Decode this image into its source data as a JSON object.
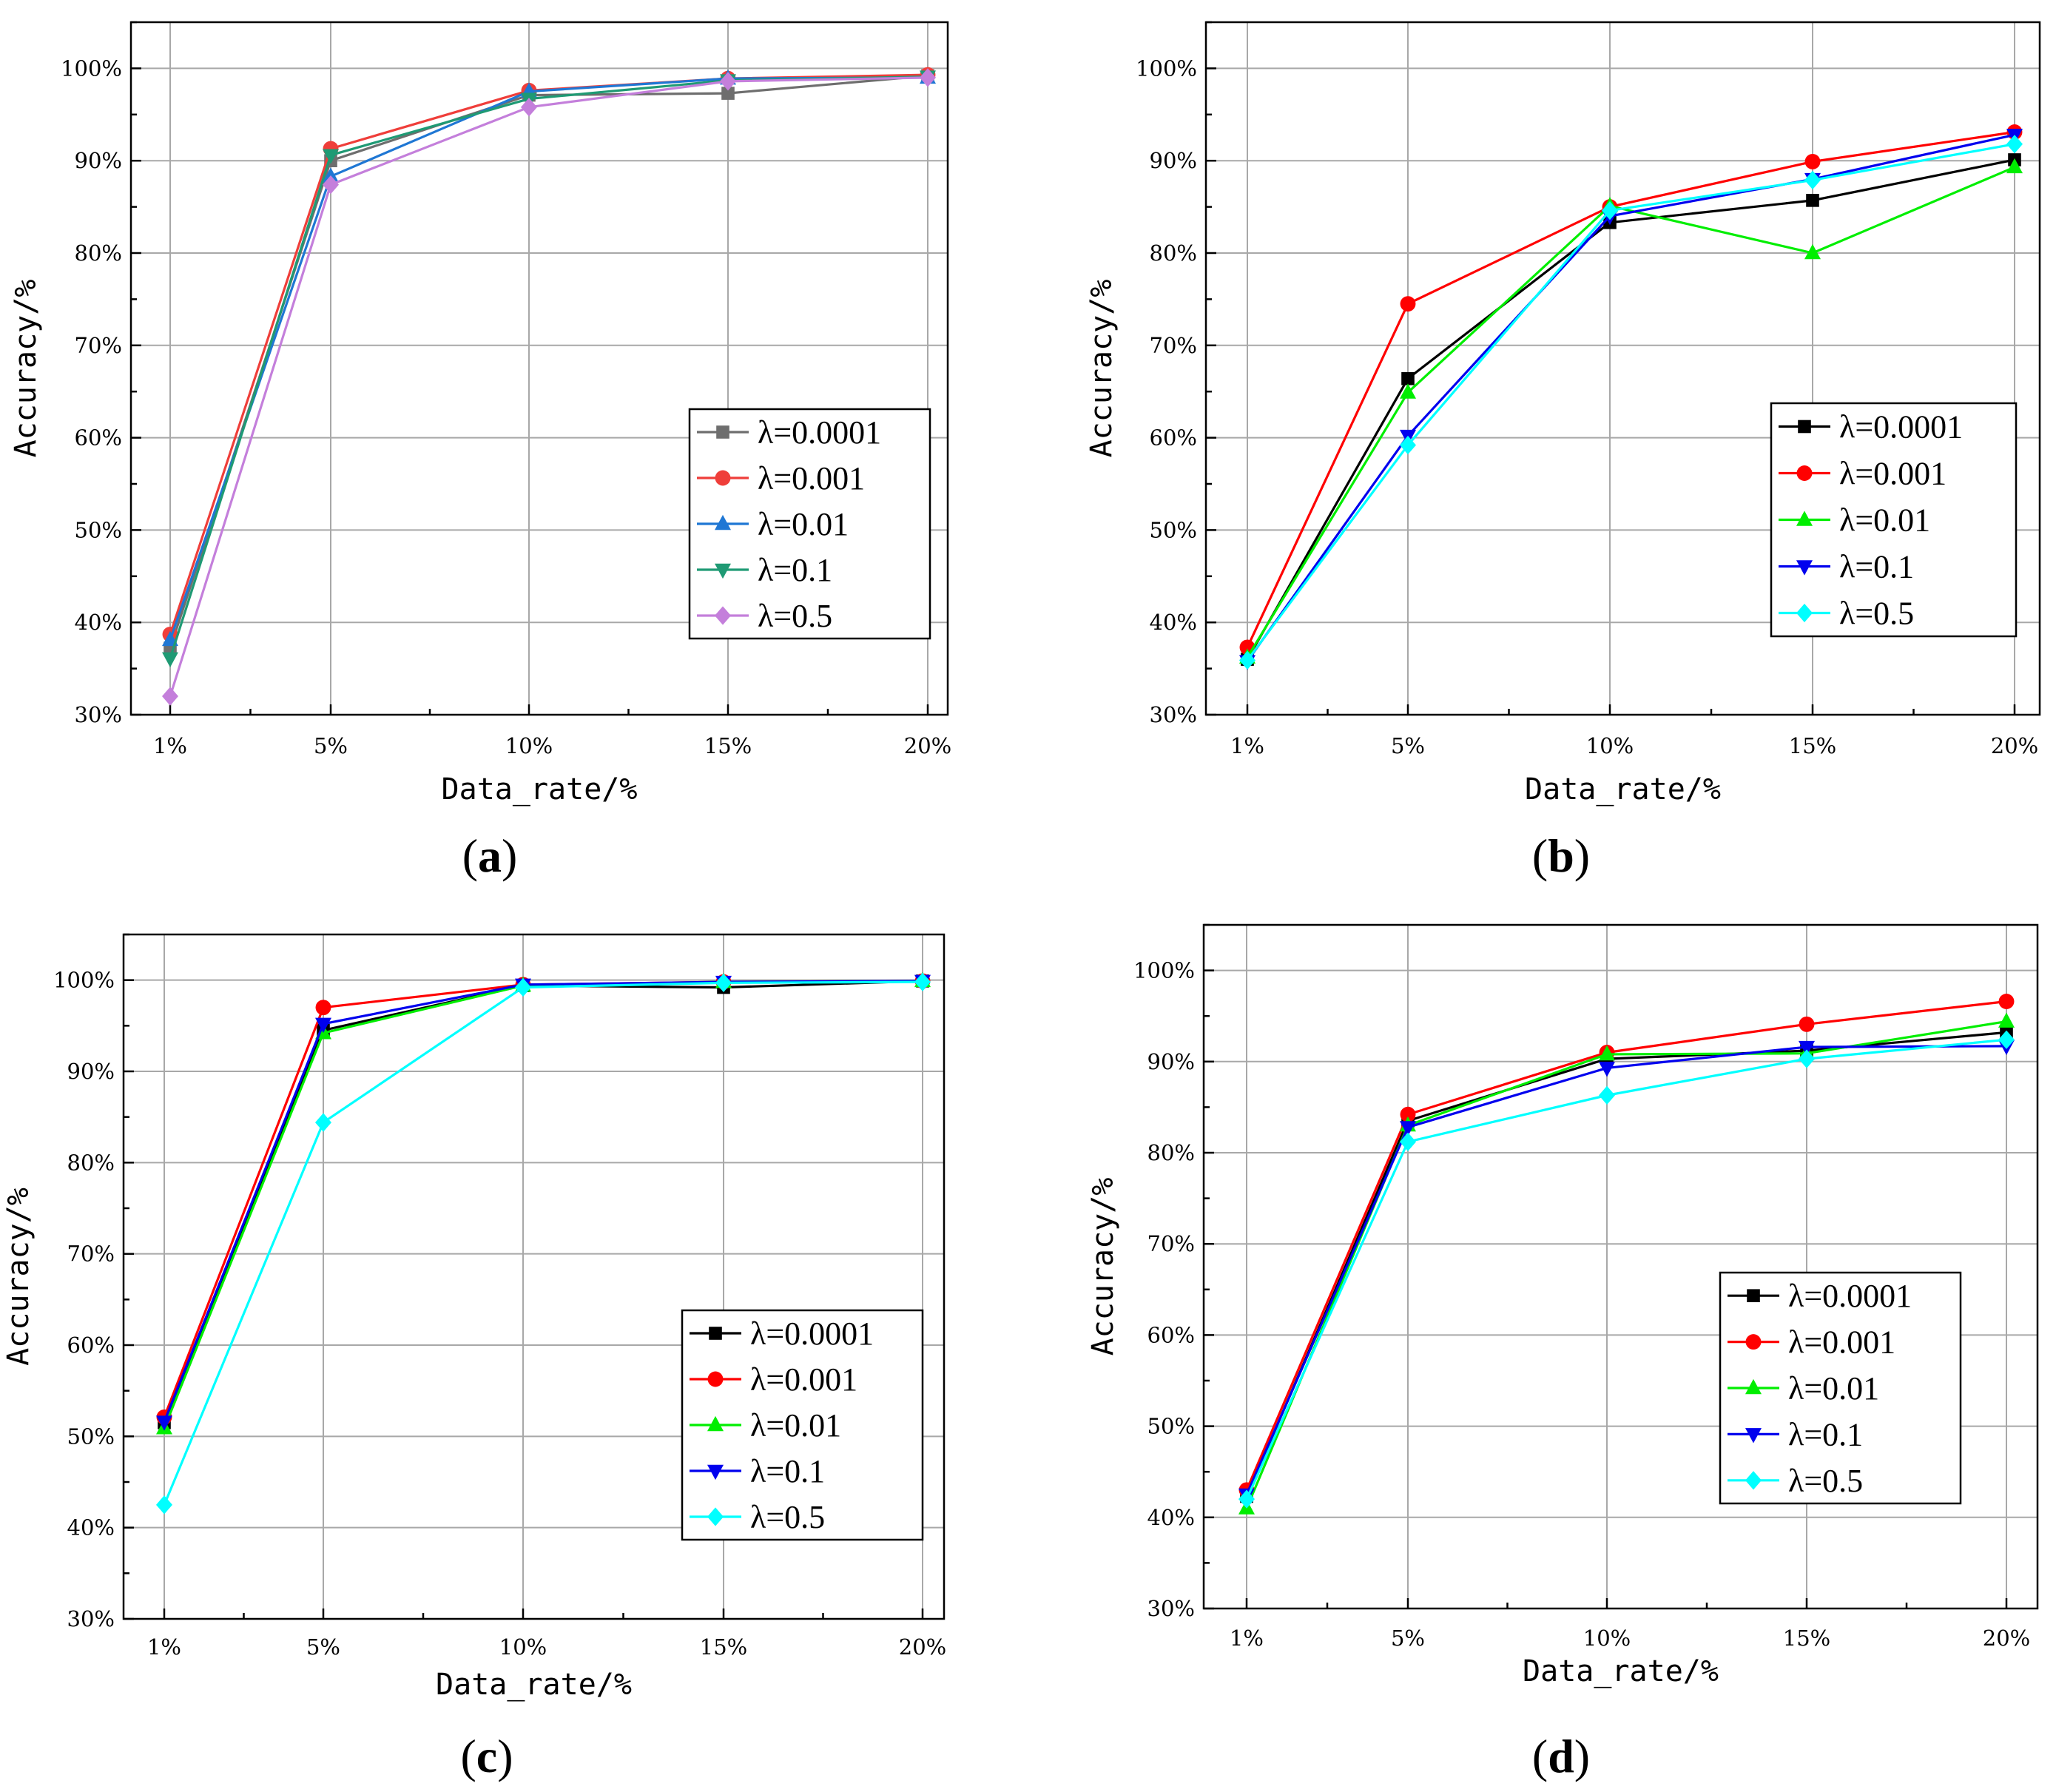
{
  "chart_data": [
    {
      "type": "line",
      "panel": "a",
      "panel_label": "a",
      "xlabel": "Data_rate/%",
      "ylabel": "Accuracy/%",
      "categories": [
        "1%",
        "5%",
        "10%",
        "15%",
        "20%"
      ],
      "ylim": [
        30,
        105
      ],
      "yticks": [
        "30%",
        "40%",
        "50%",
        "60%",
        "70%",
        "80%",
        "90%",
        "100%"
      ],
      "grid": true,
      "legend_position": "center-right",
      "series": [
        {
          "name": "λ=0.0001",
          "marker": "square",
          "color": "#6e6e6e",
          "values": [
            37.2,
            90.0,
            97.1,
            97.3,
            99.2
          ]
        },
        {
          "name": "λ=0.001",
          "marker": "circle",
          "color": "#ef3e3a",
          "values": [
            38.7,
            91.3,
            97.6,
            98.9,
            99.3
          ]
        },
        {
          "name": "λ=0.01",
          "marker": "triangle-up",
          "color": "#1f77d4",
          "values": [
            38.1,
            88.3,
            97.5,
            98.9,
            99.0
          ]
        },
        {
          "name": "λ=0.1",
          "marker": "triangle-down",
          "color": "#1f9a74",
          "values": [
            36.1,
            90.6,
            96.7,
            98.7,
            99.1
          ]
        },
        {
          "name": "λ=0.5",
          "marker": "diamond",
          "color": "#c47fdb",
          "values": [
            32.0,
            87.4,
            95.8,
            98.6,
            99.0
          ]
        }
      ]
    },
    {
      "type": "line",
      "panel": "b",
      "panel_label": "b",
      "xlabel": "Data_rate/%",
      "ylabel": "Accuracy/%",
      "categories": [
        "1%",
        "5%",
        "10%",
        "15%",
        "20%"
      ],
      "ylim": [
        30,
        105
      ],
      "yticks": [
        "30%",
        "40%",
        "50%",
        "60%",
        "70%",
        "80%",
        "90%",
        "100%"
      ],
      "grid": true,
      "legend_position": "center-right",
      "series": [
        {
          "name": "λ=0.0001",
          "marker": "square",
          "color": "#000000",
          "values": [
            36.0,
            66.4,
            83.3,
            85.7,
            90.1
          ]
        },
        {
          "name": "λ=0.001",
          "marker": "circle",
          "color": "#ff0000",
          "values": [
            37.3,
            74.5,
            85.0,
            89.9,
            93.1
          ]
        },
        {
          "name": "λ=0.01",
          "marker": "triangle-up",
          "color": "#00ee00",
          "values": [
            36.2,
            64.9,
            85.1,
            80.0,
            89.3
          ]
        },
        {
          "name": "λ=0.1",
          "marker": "triangle-down",
          "color": "#0000ee",
          "values": [
            35.8,
            60.2,
            84.0,
            88.0,
            92.8
          ]
        },
        {
          "name": "λ=0.5",
          "marker": "diamond",
          "color": "#00ffff",
          "values": [
            35.9,
            59.2,
            84.6,
            87.9,
            91.8
          ]
        }
      ]
    },
    {
      "type": "line",
      "panel": "c",
      "panel_label": "c",
      "xlabel": "Data_rate/%",
      "ylabel": "Accuracy/%",
      "categories": [
        "1%",
        "5%",
        "10%",
        "15%",
        "20%"
      ],
      "ylim": [
        30,
        105
      ],
      "yticks": [
        "30%",
        "40%",
        "50%",
        "60%",
        "70%",
        "80%",
        "90%",
        "100%"
      ],
      "grid": true,
      "legend_position": "bottom-right",
      "series": [
        {
          "name": "λ=0.0001",
          "marker": "square",
          "color": "#000000",
          "values": [
            51.5,
            94.5,
            99.4,
            99.2,
            99.9
          ]
        },
        {
          "name": "λ=0.001",
          "marker": "circle",
          "color": "#ff0000",
          "values": [
            52.1,
            97.0,
            99.5,
            99.8,
            99.9
          ]
        },
        {
          "name": "λ=0.01",
          "marker": "triangle-up",
          "color": "#00ee00",
          "values": [
            50.9,
            94.2,
            99.4,
            99.8,
            99.9
          ]
        },
        {
          "name": "λ=0.1",
          "marker": "triangle-down",
          "color": "#0000ee",
          "values": [
            51.6,
            95.2,
            99.5,
            99.8,
            99.9
          ]
        },
        {
          "name": "λ=0.5",
          "marker": "diamond",
          "color": "#00ffff",
          "values": [
            42.5,
            84.4,
            99.2,
            99.7,
            99.8
          ]
        }
      ]
    },
    {
      "type": "line",
      "panel": "d",
      "panel_label": "d",
      "xlabel": "Data_rate/%",
      "ylabel": "Accuracy/%",
      "categories": [
        "1%",
        "5%",
        "10%",
        "15%",
        "20%"
      ],
      "ylim": [
        30,
        105
      ],
      "yticks": [
        "30%",
        "40%",
        "50%",
        "60%",
        "70%",
        "80%",
        "90%",
        "100%"
      ],
      "grid": true,
      "legend_position": "center-right",
      "series": [
        {
          "name": "λ=0.0001",
          "marker": "square",
          "color": "#000000",
          "values": [
            42.3,
            83.5,
            90.3,
            91.2,
            93.2
          ]
        },
        {
          "name": "λ=0.001",
          "marker": "circle",
          "color": "#ff0000",
          "values": [
            43.0,
            84.2,
            91.0,
            94.1,
            96.6
          ]
        },
        {
          "name": "λ=0.01",
          "marker": "triangle-up",
          "color": "#00ee00",
          "values": [
            41.0,
            83.0,
            90.8,
            90.9,
            94.4
          ]
        },
        {
          "name": "λ=0.1",
          "marker": "triangle-down",
          "color": "#0000ee",
          "values": [
            42.5,
            82.8,
            89.3,
            91.6,
            91.7
          ]
        },
        {
          "name": "λ=0.5",
          "marker": "diamond",
          "color": "#00ffff",
          "values": [
            42.0,
            81.2,
            86.3,
            90.3,
            92.4
          ]
        }
      ]
    }
  ]
}
